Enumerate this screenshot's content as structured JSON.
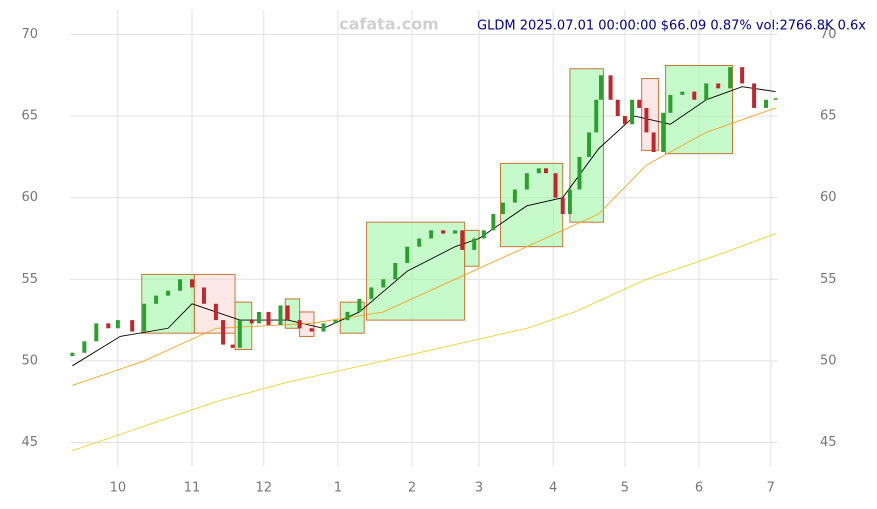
{
  "chart_data": {
    "type": "candlestick",
    "title": "GLDM 2025.07.01 00:00:00 $66.09 0.87% vol:2766.8K 0.6x",
    "watermark": "cafata.com",
    "x": [
      0,
      5,
      10,
      15,
      19,
      25,
      30,
      35,
      40,
      45,
      50,
      55,
      60,
      63,
      67,
      70,
      75,
      78,
      82,
      87,
      90,
      95,
      100,
      105,
      110,
      115,
      120,
      125,
      130,
      135,
      140,
      145,
      150,
      155,
      160,
      163,
      168,
      172,
      176,
      180,
      185,
      190,
      195,
      198,
      202,
      205,
      208,
      212,
      216,
      219,
      221,
      225,
      228,
      231,
      234,
      237,
      240,
      243,
      247,
      250,
      255,
      260,
      265,
      270,
      275,
      280,
      285,
      290,
      294
    ],
    "open": [
      50.3,
      50.5,
      51.2,
      52.3,
      52.0,
      52.5,
      51.8,
      53.5,
      54,
      54.3,
      55,
      54.5,
      53.5,
      52.5,
      51,
      50.8,
      52.5,
      52.3,
      53,
      52.2,
      53.4,
      52.5,
      52,
      51.8,
      52.3,
      52.5,
      53,
      53.8,
      54.5,
      55,
      56,
      57,
      57.5,
      58,
      57.8,
      58,
      56.8,
      57.5,
      58,
      59,
      59.7,
      60.5,
      61.5,
      61.8,
      61.5,
      60,
      59,
      60.5,
      62.5,
      64,
      66,
      67.5,
      66,
      65,
      64.5,
      66,
      65.5,
      64,
      62.8,
      65.2,
      66.3,
      66.5,
      66,
      67,
      66.7,
      68,
      67,
      65.5,
      66
    ],
    "close": [
      50.5,
      51.2,
      52.3,
      52.0,
      52.5,
      51.8,
      53.5,
      54,
      54.3,
      55,
      54.5,
      53.5,
      52.5,
      51,
      50.8,
      52.5,
      52.3,
      53,
      52.2,
      53.4,
      52.5,
      52,
      51.8,
      52.3,
      52.5,
      53,
      53.8,
      54.5,
      55,
      56,
      57,
      57.5,
      58,
      57.8,
      58,
      56.8,
      57.5,
      58,
      59,
      59.7,
      60.5,
      61.5,
      61.8,
      61.5,
      60,
      59,
      60.5,
      62.5,
      64,
      66,
      67.5,
      66,
      65,
      64.5,
      66,
      65.5,
      64,
      62.8,
      65.2,
      66.3,
      66.5,
      66,
      67,
      66.7,
      68,
      67,
      65.5,
      66,
      66.09
    ],
    "up_color": "#2ca02c",
    "down_color": "#c0272d",
    "lines": [
      {
        "color": "#000000",
        "x": [
          0,
          20,
          40,
          50,
          70,
          90,
          105,
          120,
          140,
          160,
          170,
          190,
          205,
          220,
          235,
          250,
          265,
          280,
          294
        ],
        "values": [
          49.7,
          51.5,
          52,
          53.5,
          52.5,
          52.5,
          52,
          53,
          55.5,
          57,
          57.5,
          59.5,
          60,
          63,
          65,
          64.5,
          66,
          66.8,
          66.5
        ]
      },
      {
        "color": "#f5a623",
        "x": [
          0,
          30,
          60,
          100,
          130,
          160,
          190,
          220,
          240,
          265,
          294
        ],
        "values": [
          48.5,
          50,
          52,
          52.3,
          53,
          55,
          57,
          59,
          62,
          64,
          65.5
        ]
      },
      {
        "color": "#f2d22e",
        "x": [
          0,
          30,
          60,
          90,
          130,
          160,
          190,
          210,
          240,
          270,
          294
        ],
        "values": [
          44.5,
          46,
          47.5,
          48.7,
          50,
          51,
          52,
          53,
          55,
          56.5,
          57.8
        ]
      }
    ],
    "boxes": [
      {
        "x": [
          29,
          51
        ],
        "y": [
          51.7,
          55.3
        ],
        "color": "#99f5a0"
      },
      {
        "x": [
          51,
          68
        ],
        "y": [
          51.7,
          55.3
        ],
        "color": "#fbd5d5"
      },
      {
        "x": [
          68,
          75
        ],
        "y": [
          50.7,
          53.6
        ],
        "color": "#99f5a0"
      },
      {
        "x": [
          89,
          95
        ],
        "y": [
          52,
          53.8
        ],
        "color": "#99f5a0"
      },
      {
        "x": [
          95,
          101
        ],
        "y": [
          51.5,
          53
        ],
        "color": "#fbd5d5"
      },
      {
        "x": [
          112,
          122
        ],
        "y": [
          51.7,
          53.6
        ],
        "color": "#99f5a0"
      },
      {
        "x": [
          123,
          164
        ],
        "y": [
          52.5,
          58.5
        ],
        "color": "#99f5a0"
      },
      {
        "x": [
          164,
          170
        ],
        "y": [
          55.8,
          58
        ],
        "color": "#99f5a0"
      },
      {
        "x": [
          179,
          205
        ],
        "y": [
          57,
          62.1
        ],
        "color": "#99f5a0"
      },
      {
        "x": [
          208,
          222
        ],
        "y": [
          58.5,
          67.9
        ],
        "color": "#99f5a0"
      },
      {
        "x": [
          238,
          245
        ],
        "y": [
          62.9,
          67.3
        ],
        "color": "#fbd5d5"
      },
      {
        "x": [
          248,
          276
        ],
        "y": [
          62.7,
          68.1
        ],
        "color": "#99f5a0"
      }
    ],
    "xlim": [
      -1,
      295
    ],
    "xticks": [
      {
        "value": 19,
        "label": "10"
      },
      {
        "value": 50,
        "label": "11"
      },
      {
        "value": 80,
        "label": "12"
      },
      {
        "value": 111,
        "label": "1"
      },
      {
        "value": 142,
        "label": "2"
      },
      {
        "value": 170,
        "label": "3"
      },
      {
        "value": 201,
        "label": "4"
      },
      {
        "value": 231,
        "label": "5"
      },
      {
        "value": 262,
        "label": "6"
      },
      {
        "value": 292,
        "label": "7"
      }
    ],
    "ylim": [
      43.5,
      71.5
    ],
    "yticks": [
      45,
      50,
      55,
      60,
      65,
      70
    ],
    "grid": true
  }
}
